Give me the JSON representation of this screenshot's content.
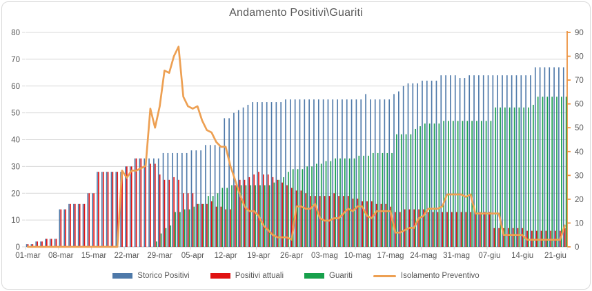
{
  "chart_data": {
    "type": "bar+line",
    "title": "Andamento Positivi\\Guariti",
    "x_tick_labels": [
      "01-mar",
      "08-mar",
      "15-mar",
      "22-mar",
      "29-mar",
      "05-apr",
      "12-apr",
      "19-apr",
      "26-apr",
      "03-mag",
      "10-mag",
      "17-mag",
      "24-mag",
      "31-mag",
      "07-giu",
      "14-giu",
      "21-giu"
    ],
    "x_tick_interval": 7,
    "n_days": 115,
    "grid": "horizontal",
    "legend_position": "bottom",
    "axes": {
      "left": {
        "min": 0,
        "max": 80,
        "step": 10,
        "label_color": "#595959"
      },
      "right": {
        "min": 0,
        "max": 90,
        "step": 10,
        "label_color": "#595959",
        "line_color": "#ed9340"
      }
    },
    "colors": {
      "grid": "#d9d9d9",
      "axis_line": "#c6c6c6",
      "text": "#595959",
      "storico": "#4e79a9",
      "attuali": "#e01212",
      "guariti": "#17a04b",
      "isolamento": "#eda053"
    },
    "series": [
      {
        "name": "Storico Positivi",
        "type": "bar",
        "axis": "left",
        "color": "#4e79a9",
        "values": [
          1,
          1,
          2,
          2,
          3,
          3,
          3,
          14,
          14,
          16,
          16,
          16,
          16,
          20,
          20,
          28,
          28,
          28,
          28,
          28,
          28,
          30,
          30,
          33,
          33,
          33,
          33,
          33,
          33,
          35,
          35,
          35,
          35,
          35,
          35,
          36,
          36,
          36,
          38,
          38,
          38,
          38,
          48,
          48,
          50,
          51,
          52,
          53,
          54,
          54,
          54,
          54,
          54,
          54,
          54,
          55,
          55,
          55,
          55,
          55,
          55,
          55,
          55,
          55,
          55,
          55,
          55,
          55,
          55,
          55,
          55,
          55,
          57,
          55,
          55,
          55,
          55,
          55,
          57,
          58,
          60,
          61,
          61,
          61,
          62,
          62,
          62,
          62,
          64,
          64,
          64,
          64,
          63,
          63,
          64,
          64,
          64,
          64,
          64,
          64,
          64,
          64,
          64,
          64,
          64,
          64,
          64,
          64,
          67,
          67,
          67,
          67,
          67,
          67,
          67
        ]
      },
      {
        "name": "Positivi attuali",
        "type": "bar",
        "axis": "left",
        "color": "#e01212",
        "values": [
          1,
          1,
          2,
          2,
          3,
          3,
          3,
          14,
          14,
          16,
          16,
          16,
          16,
          20,
          20,
          28,
          28,
          28,
          28,
          28,
          28,
          30,
          30,
          33,
          33,
          31,
          31,
          31,
          27,
          25,
          25,
          26,
          25,
          20,
          20,
          20,
          16,
          16,
          16,
          17,
          15,
          15,
          14,
          14,
          23,
          25,
          25,
          26,
          27,
          28,
          27,
          27,
          26,
          25,
          24,
          23,
          22,
          21,
          21,
          20,
          19,
          19,
          19,
          19,
          19,
          20,
          19,
          19,
          19,
          18,
          18,
          17,
          17,
          17,
          16,
          16,
          16,
          15,
          13,
          13,
          14,
          14,
          14,
          14,
          14,
          13,
          13,
          13,
          13,
          13,
          13,
          13,
          13,
          13,
          13,
          13,
          13,
          13,
          13,
          7,
          7,
          7,
          7,
          7,
          7,
          7,
          6,
          6,
          6,
          6,
          6,
          6,
          6,
          6,
          7
        ]
      },
      {
        "name": "Guariti",
        "type": "bar",
        "axis": "left",
        "color": "#17a04b",
        "values": [
          0,
          0,
          0,
          0,
          0,
          0,
          0,
          0,
          0,
          0,
          0,
          0,
          0,
          0,
          0,
          0,
          0,
          0,
          0,
          0,
          0,
          0,
          0,
          0,
          0,
          0,
          0,
          2,
          5,
          7,
          8,
          13,
          13,
          14,
          14,
          15,
          16,
          16,
          19,
          19,
          20,
          22,
          22,
          23,
          23,
          23,
          23,
          23,
          23,
          23,
          23,
          23,
          24,
          25,
          26,
          28,
          29,
          29,
          29,
          30,
          30,
          31,
          31,
          32,
          32,
          33,
          33,
          33,
          33,
          33,
          34,
          34,
          34,
          35,
          35,
          35,
          35,
          35,
          42,
          42,
          42,
          42,
          44,
          45,
          46,
          46,
          46,
          46,
          47,
          47,
          47,
          47,
          47,
          47,
          47,
          47,
          47,
          47,
          47,
          52,
          52,
          52,
          52,
          52,
          52,
          52,
          52,
          53,
          56,
          56,
          56,
          56,
          56,
          56,
          56
        ]
      },
      {
        "name": "Isolamento Preventivo",
        "type": "line",
        "axis": "right",
        "color": "#eda053",
        "values": [
          0,
          0,
          0,
          0,
          0,
          0,
          0,
          0,
          0,
          0,
          0,
          0,
          0,
          0,
          0,
          0,
          0,
          0,
          0,
          0,
          32,
          29,
          32,
          32,
          33,
          34,
          58,
          50,
          59,
          74,
          73,
          80,
          84,
          63,
          59,
          58,
          59,
          53,
          49,
          48,
          44,
          42,
          42,
          34,
          28,
          22,
          17,
          15,
          15,
          13,
          9,
          7,
          5,
          4,
          4,
          4,
          3,
          17,
          17,
          16,
          16,
          18,
          12,
          11,
          11,
          12,
          12,
          14,
          16,
          15,
          17,
          17,
          13,
          12,
          15,
          15,
          15,
          15,
          6,
          6,
          7,
          8,
          8,
          12,
          13,
          16,
          16,
          16,
          17,
          22,
          22,
          22,
          22,
          21,
          22,
          14,
          14,
          14,
          14,
          14,
          14,
          5,
          5,
          5,
          5,
          5,
          3,
          3,
          3,
          3,
          3,
          3,
          3,
          3,
          9
        ]
      }
    ]
  }
}
